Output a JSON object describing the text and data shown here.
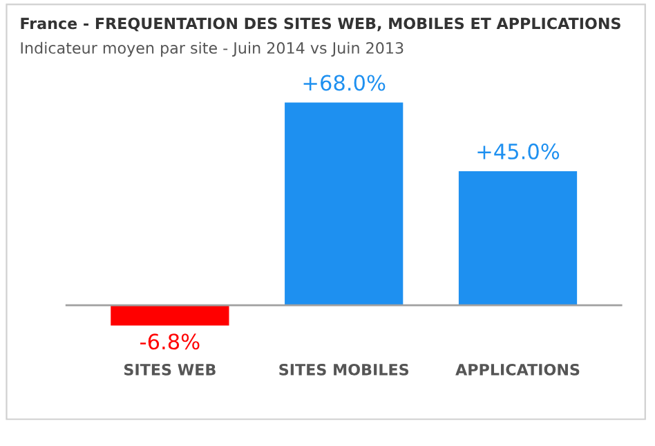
{
  "chart_data": {
    "type": "bar",
    "title": "France - FREQUENTATION DES SITES WEB, MOBILES ET APPLICATIONS",
    "subtitle": "Indicateur moyen par site - Juin 2014 vs Juin 2013",
    "categories": [
      "SITES WEB",
      "SITES MOBILES",
      "APPLICATIONS"
    ],
    "values": [
      -6.8,
      68.0,
      45.0
    ],
    "colors": [
      "#ff0000",
      "#1e90f0",
      "#1e90f0"
    ],
    "value_labels": [
      "-6.8%",
      "+68.0%",
      "+45.0%"
    ]
  }
}
